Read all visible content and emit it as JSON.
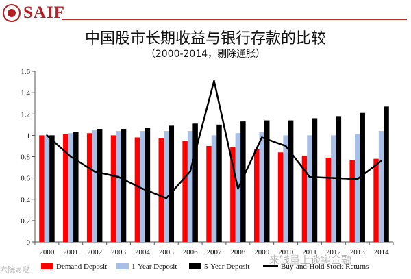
{
  "header": {
    "logo_text": "SAIF",
    "title": "中国股市长期收益与银行存款的比较",
    "subtitle": "（2000-2014，剔除通胀）"
  },
  "colors": {
    "demand": "#ff0000",
    "one_year": "#a8bfe6",
    "five_year": "#000000",
    "stock": "#000000",
    "brand": "#b51f24"
  },
  "chart_data": {
    "type": "bar",
    "title": "中国股市长期收益与银行存款的比较",
    "subtitle": "（2000-2014，剔除通胀）",
    "xlabel": "",
    "ylabel": "",
    "ylim": [
      0,
      1.6
    ],
    "yticks": [
      0,
      0.2,
      0.4,
      0.6,
      0.8,
      1,
      1.2,
      1.4,
      1.6
    ],
    "ytick_labels": [
      "0",
      "0.2",
      "0.4",
      "0.6",
      "0.8",
      "1",
      "1.2",
      "1.4",
      "1.6"
    ],
    "categories": [
      "2000",
      "2001",
      "2002",
      "2003",
      "2004",
      "2005",
      "2006",
      "2007",
      "2008",
      "2009",
      "2010",
      "2011",
      "2012",
      "2013",
      "2014"
    ],
    "series": [
      {
        "name": "Demand Deposit",
        "kind": "bar",
        "values": [
          1.0,
          1.01,
          1.02,
          1.0,
          0.98,
          0.97,
          0.95,
          0.9,
          0.89,
          0.87,
          0.84,
          0.81,
          0.79,
          0.77,
          0.78
        ]
      },
      {
        "name": "1-Year Deposit",
        "kind": "bar",
        "values": [
          1.0,
          1.02,
          1.05,
          1.04,
          1.04,
          1.04,
          1.04,
          1.0,
          1.02,
          1.03,
          1.0,
          1.0,
          1.0,
          1.01,
          1.04
        ]
      },
      {
        "name": "5-Year Deposit",
        "kind": "bar",
        "values": [
          1.0,
          1.03,
          1.06,
          1.06,
          1.07,
          1.09,
          1.11,
          1.1,
          1.13,
          1.14,
          1.14,
          1.16,
          1.18,
          1.21,
          1.27
        ]
      },
      {
        "name": "Buy-and-Hold Stock Returns",
        "kind": "line",
        "values": [
          1.0,
          0.8,
          0.66,
          0.61,
          0.5,
          0.41,
          0.66,
          1.51,
          0.5,
          0.98,
          0.9,
          0.61,
          0.6,
          0.59,
          0.76
        ]
      }
    ],
    "legend_position": "bottom",
    "grid": false
  },
  "watermarks": {
    "left": "六院ぁ哒",
    "right": "来钱量上谈实金融"
  }
}
